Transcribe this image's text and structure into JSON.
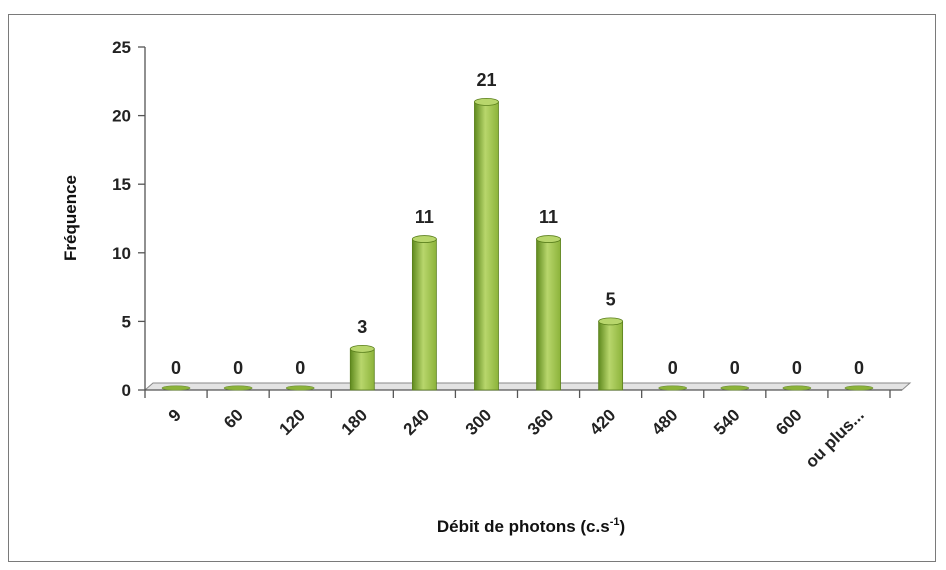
{
  "chart_data": {
    "type": "bar",
    "categories": [
      "9",
      "60",
      "120",
      "180",
      "240",
      "300",
      "360",
      "420",
      "480",
      "540",
      "600",
      "ou plus..."
    ],
    "values": [
      0,
      0,
      0,
      3,
      11,
      21,
      11,
      5,
      0,
      0,
      0,
      0
    ],
    "data_labels": [
      "0",
      "0",
      "0",
      "3",
      "11",
      "21",
      "11",
      "5",
      "0",
      "0",
      "0",
      "0"
    ],
    "title": "",
    "ylabel": "Fréquence",
    "xlabel": {
      "main": "Débit de photons (c.s",
      "superscript": "-1",
      "suffix": ")"
    },
    "ylim": [
      0,
      25
    ],
    "yticks": [
      "0",
      "5",
      "10",
      "15",
      "20",
      "25"
    ],
    "grid": false,
    "legend": "none",
    "colors": {
      "bar_fill": "#8cb33a",
      "bar_light": "#b8d66c",
      "bar_dark": "#5f8a1e",
      "floor": "#e3e3e3"
    }
  }
}
